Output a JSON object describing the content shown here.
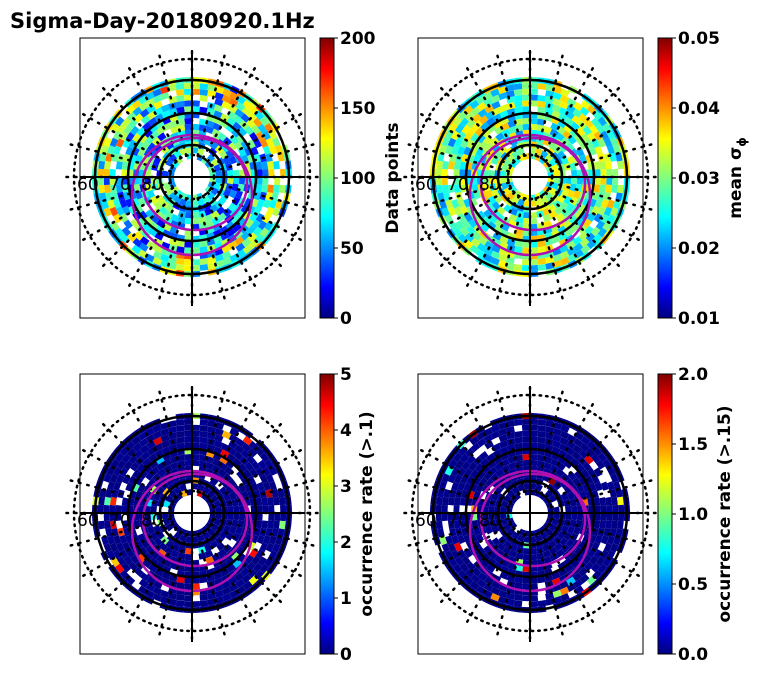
{
  "chart_data": {
    "type": "heatmap",
    "title": "Sigma-Day-20180920.1Hz",
    "ring_labels": [
      "60",
      "70",
      "80"
    ],
    "panels": [
      {
        "name": "data-points",
        "colorbar_label": "Data points",
        "range": [
          0,
          200
        ],
        "ticks": [
          "0",
          "50",
          "100",
          "150",
          "200"
        ]
      },
      {
        "name": "mean-sigma-phi",
        "colorbar_label": "mean σ",
        "colorbar_label_sub": "ϕ",
        "range": [
          0.01,
          0.05
        ],
        "ticks": [
          "0.01",
          "0.02",
          "0.03",
          "0.04",
          "0.05"
        ]
      },
      {
        "name": "occurrence-rate-01",
        "colorbar_label": "occurrence rate (>.1)",
        "range": [
          0,
          5
        ],
        "ticks": [
          "0",
          "1",
          "2",
          "3",
          "4",
          "5"
        ]
      },
      {
        "name": "occurrence-rate-015",
        "colorbar_label": "occurrence rate (>.15)",
        "range": [
          0,
          2
        ],
        "ticks": [
          "0.0",
          "0.5",
          "1.0",
          "1.5",
          "2.0"
        ]
      }
    ]
  }
}
